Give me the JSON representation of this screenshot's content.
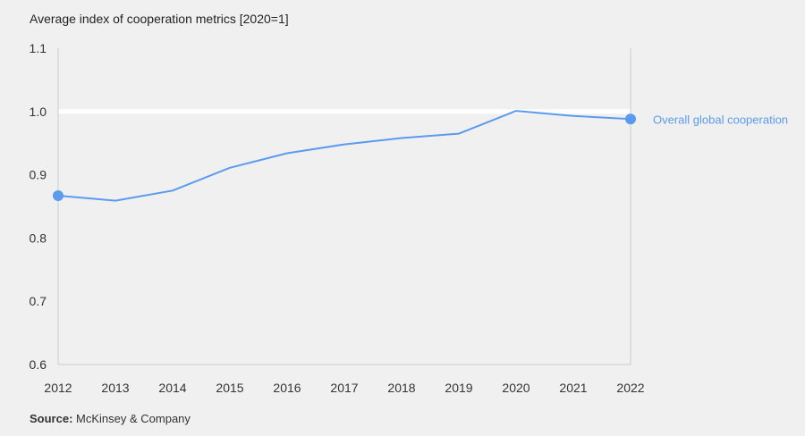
{
  "chart_data": {
    "type": "line",
    "title": "Average index of cooperation metrics [2020=1]",
    "x": [
      "2012",
      "2013",
      "2014",
      "2015",
      "2016",
      "2017",
      "2018",
      "2019",
      "2020",
      "2021",
      "2022"
    ],
    "series": [
      {
        "name": "Overall global cooperation",
        "values": [
          0.867,
          0.859,
          0.875,
          0.911,
          0.934,
          0.948,
          0.958,
          0.965,
          1.001,
          0.993,
          0.988
        ]
      }
    ],
    "ylim": [
      0.6,
      1.1
    ],
    "yticks": [
      "0.6",
      "0.7",
      "0.8",
      "0.9",
      "1.0",
      "1.1"
    ],
    "reference_line": 1.0,
    "grid": false,
    "colors": {
      "series": "#5b9bef",
      "axis": "#cccccc",
      "reference": "#ffffff"
    }
  },
  "source": {
    "label": "Source:",
    "text": "McKinsey & Company"
  }
}
